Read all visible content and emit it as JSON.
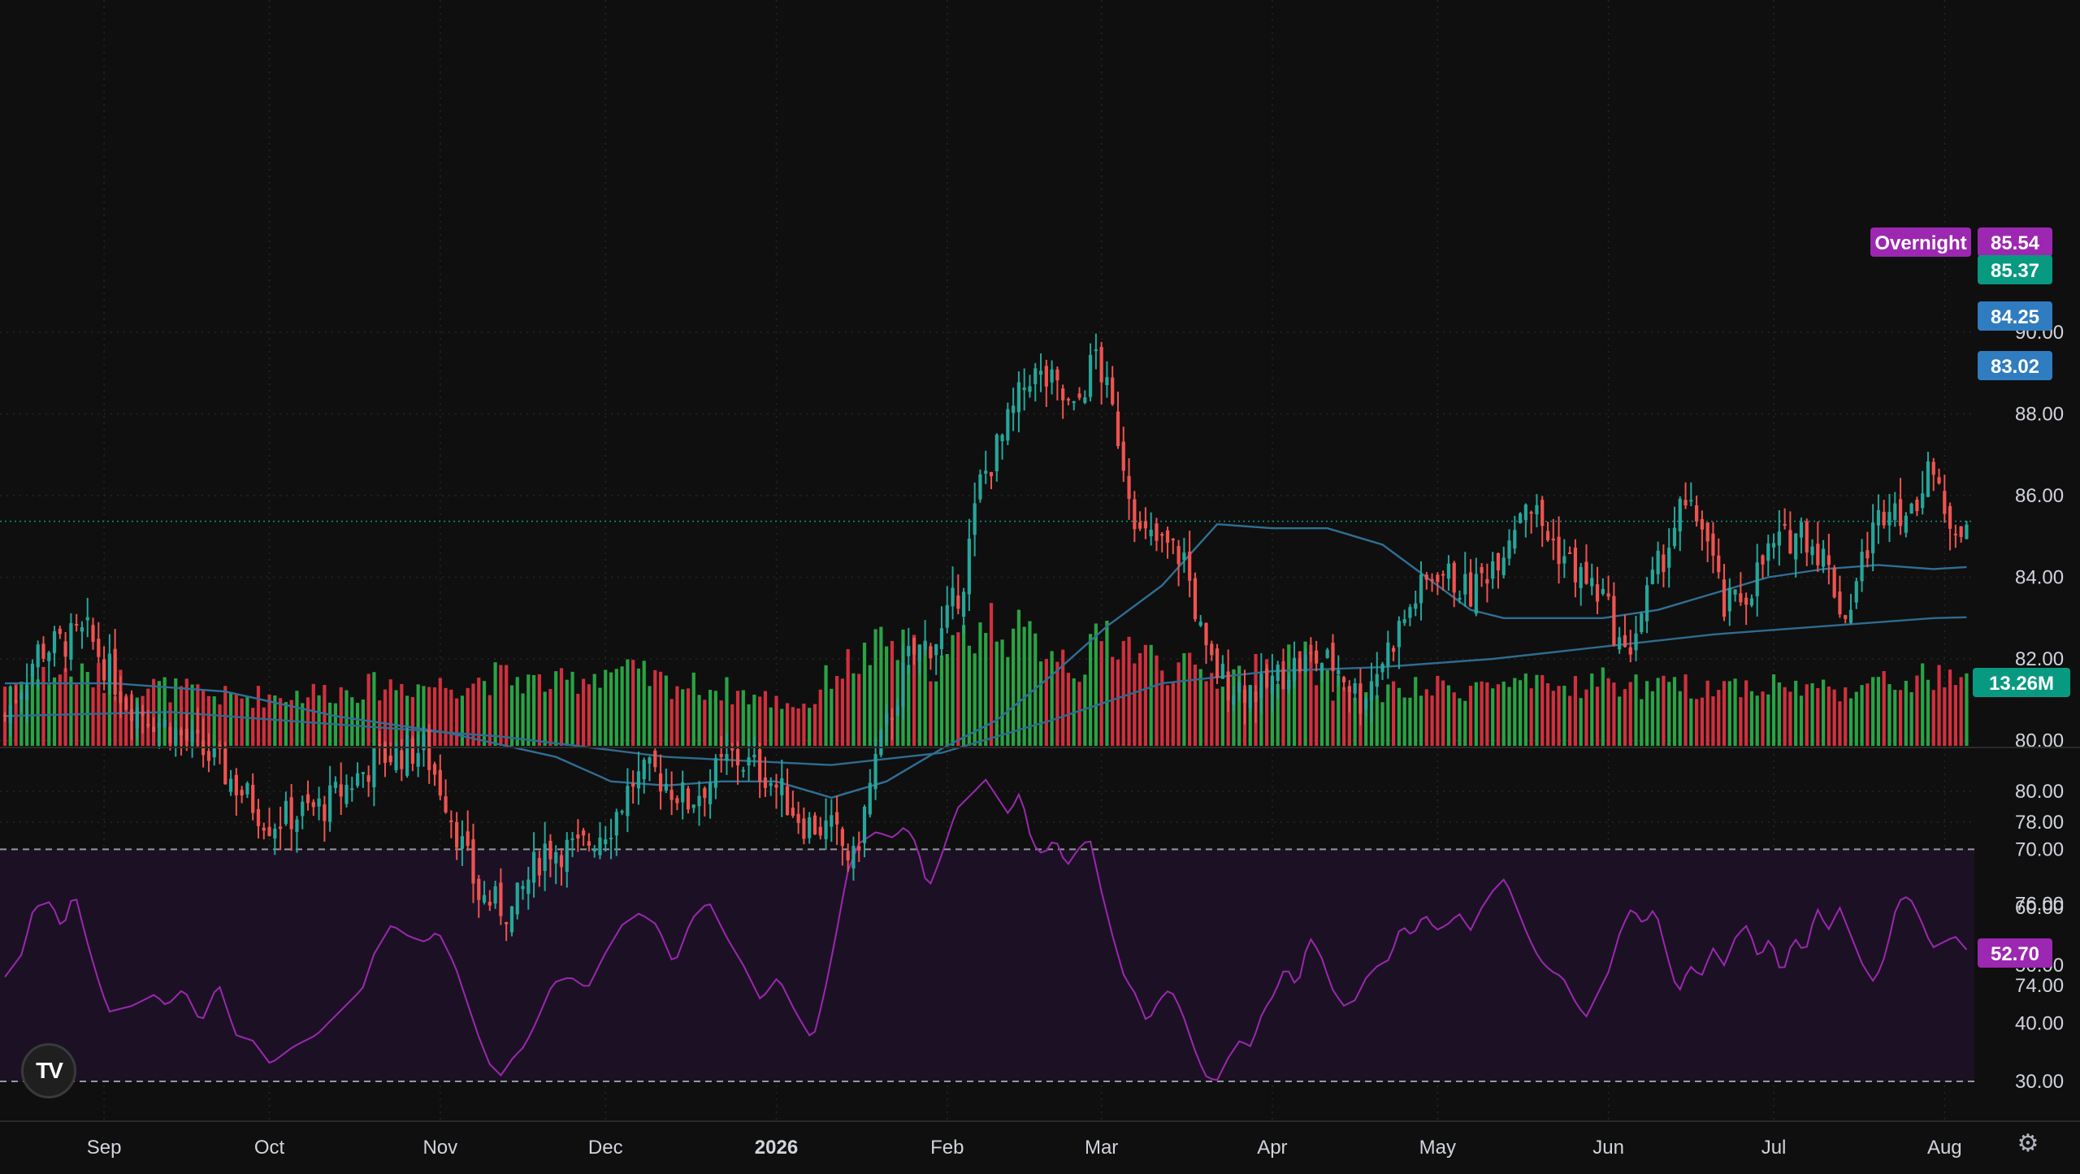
{
  "chart_data": {
    "type": "candlestick",
    "price_axis": {
      "ticks": [
        "90.00",
        "88.00",
        "86.00",
        "84.00",
        "82.00",
        "80.00",
        "78.00",
        "76.00",
        "74.00"
      ],
      "min": 74,
      "max": 90
    },
    "rsi_axis": {
      "ticks": [
        "80.00",
        "70.00",
        "60.00",
        "50.00",
        "40.00",
        "30.00"
      ],
      "overbought": 70,
      "oversold": 30
    },
    "x_labels": [
      {
        "label": "Sep",
        "day": 18
      },
      {
        "label": "Oct",
        "day": 48
      },
      {
        "label": "Nov",
        "day": 79
      },
      {
        "label": "Dec",
        "day": 109
      },
      {
        "label": "2026",
        "day": 140,
        "bold": true
      },
      {
        "label": "Feb",
        "day": 171
      },
      {
        "label": "Mar",
        "day": 199
      },
      {
        "label": "Apr",
        "day": 230
      },
      {
        "label": "May",
        "day": 260
      },
      {
        "label": "Jun",
        "day": 291
      },
      {
        "label": "Jul",
        "day": 321
      },
      {
        "label": "Aug",
        "day": 352
      }
    ],
    "price_anchors": [
      [
        0,
        80.6
      ],
      [
        6,
        82.2
      ],
      [
        15,
        82.6
      ],
      [
        22,
        81.0
      ],
      [
        30,
        80.3
      ],
      [
        38,
        79.5
      ],
      [
        48,
        78.0
      ],
      [
        58,
        78.4
      ],
      [
        68,
        79.6
      ],
      [
        76,
        79.8
      ],
      [
        80,
        78.6
      ],
      [
        86,
        76.2
      ],
      [
        92,
        75.8
      ],
      [
        98,
        77.4
      ],
      [
        104,
        77.3
      ],
      [
        110,
        78.0
      ],
      [
        114,
        79.0
      ],
      [
        118,
        79.2
      ],
      [
        124,
        78.5
      ],
      [
        132,
        79.6
      ],
      [
        138,
        79.2
      ],
      [
        145,
        78.0
      ],
      [
        150,
        77.8
      ],
      [
        154,
        77.0
      ],
      [
        158,
        79.5
      ],
      [
        164,
        82.0
      ],
      [
        170,
        82.6
      ],
      [
        174,
        84.0
      ],
      [
        177,
        86.3
      ],
      [
        181,
        87.4
      ],
      [
        186,
        89.0
      ],
      [
        190,
        88.7
      ],
      [
        194,
        88.0
      ],
      [
        198,
        89.5
      ],
      [
        202,
        87.5
      ],
      [
        206,
        85.0
      ],
      [
        210,
        84.8
      ],
      [
        214,
        84.5
      ],
      [
        218,
        82.0
      ],
      [
        222,
        81.4
      ],
      [
        228,
        81.2
      ],
      [
        233,
        81.8
      ],
      [
        238,
        82.0
      ],
      [
        242,
        81.8
      ],
      [
        246,
        81.0
      ],
      [
        250,
        82.0
      ],
      [
        256,
        83.5
      ],
      [
        260,
        84.2
      ],
      [
        266,
        83.6
      ],
      [
        272,
        84.8
      ],
      [
        276,
        86.0
      ],
      [
        280,
        85.0
      ],
      [
        286,
        84.0
      ],
      [
        290,
        83.5
      ],
      [
        294,
        82.0
      ],
      [
        298,
        83.5
      ],
      [
        304,
        85.6
      ],
      [
        308,
        85.4
      ],
      [
        312,
        83.2
      ],
      [
        316,
        83.6
      ],
      [
        320,
        84.6
      ],
      [
        326,
        85.2
      ],
      [
        330,
        84.5
      ],
      [
        334,
        83.0
      ],
      [
        338,
        84.8
      ],
      [
        342,
        86.0
      ],
      [
        346,
        85.4
      ],
      [
        349,
        87.0
      ],
      [
        352,
        85.4
      ],
      [
        356,
        85.37
      ]
    ],
    "last_day": 356,
    "sma_short_anchors": [
      [
        0,
        81.4
      ],
      [
        20,
        81.4
      ],
      [
        40,
        81.2
      ],
      [
        60,
        80.6
      ],
      [
        80,
        80.2
      ],
      [
        100,
        79.6
      ],
      [
        110,
        79.0
      ],
      [
        120,
        78.9
      ],
      [
        130,
        79.0
      ],
      [
        140,
        79.0
      ],
      [
        150,
        78.6
      ],
      [
        160,
        79.0
      ],
      [
        170,
        79.8
      ],
      [
        180,
        80.5
      ],
      [
        190,
        81.6
      ],
      [
        200,
        82.8
      ],
      [
        210,
        83.8
      ],
      [
        220,
        85.3
      ],
      [
        230,
        85.2
      ],
      [
        240,
        85.2
      ],
      [
        250,
        84.8
      ],
      [
        260,
        83.8
      ],
      [
        266,
        83.2
      ],
      [
        272,
        83.0
      ],
      [
        280,
        83.0
      ],
      [
        290,
        83.0
      ],
      [
        300,
        83.2
      ],
      [
        310,
        83.6
      ],
      [
        320,
        84.0
      ],
      [
        330,
        84.2
      ],
      [
        340,
        84.3
      ],
      [
        350,
        84.2
      ],
      [
        356,
        84.25
      ]
    ],
    "sma_long_anchors": [
      [
        0,
        80.6
      ],
      [
        30,
        80.7
      ],
      [
        60,
        80.4
      ],
      [
        90,
        80.1
      ],
      [
        120,
        79.6
      ],
      [
        150,
        79.4
      ],
      [
        170,
        79.7
      ],
      [
        190,
        80.5
      ],
      [
        210,
        81.4
      ],
      [
        230,
        81.7
      ],
      [
        250,
        81.8
      ],
      [
        270,
        82.0
      ],
      [
        290,
        82.3
      ],
      [
        310,
        82.6
      ],
      [
        330,
        82.8
      ],
      [
        350,
        83.0
      ],
      [
        356,
        83.02
      ]
    ],
    "volume_anchors": [
      [
        0,
        0.3
      ],
      [
        10,
        0.36
      ],
      [
        20,
        0.32
      ],
      [
        30,
        0.28
      ],
      [
        40,
        0.24
      ],
      [
        50,
        0.25
      ],
      [
        60,
        0.27
      ],
      [
        70,
        0.3
      ],
      [
        80,
        0.3
      ],
      [
        90,
        0.34
      ],
      [
        100,
        0.3
      ],
      [
        110,
        0.38
      ],
      [
        120,
        0.31
      ],
      [
        130,
        0.28
      ],
      [
        140,
        0.22
      ],
      [
        146,
        0.2
      ],
      [
        150,
        0.36
      ],
      [
        155,
        0.42
      ],
      [
        160,
        0.5
      ],
      [
        170,
        0.4
      ],
      [
        175,
        0.56
      ],
      [
        180,
        0.62
      ],
      [
        185,
        0.52
      ],
      [
        190,
        0.5
      ],
      [
        195,
        0.38
      ],
      [
        200,
        0.56
      ],
      [
        205,
        0.48
      ],
      [
        210,
        0.4
      ],
      [
        220,
        0.34
      ],
      [
        230,
        0.38
      ],
      [
        236,
        0.44
      ],
      [
        240,
        0.3
      ],
      [
        250,
        0.26
      ],
      [
        260,
        0.28
      ],
      [
        270,
        0.3
      ],
      [
        280,
        0.28
      ],
      [
        290,
        0.32
      ],
      [
        300,
        0.28
      ],
      [
        310,
        0.3
      ],
      [
        320,
        0.3
      ],
      [
        330,
        0.28
      ],
      [
        340,
        0.3
      ],
      [
        350,
        0.34
      ],
      [
        356,
        0.3
      ]
    ],
    "rsi_anchors": [
      [
        0,
        48
      ],
      [
        3,
        52
      ],
      [
        5,
        60
      ],
      [
        8,
        61
      ],
      [
        10,
        56
      ],
      [
        12,
        63
      ],
      [
        14,
        55
      ],
      [
        16,
        48
      ],
      [
        18,
        42
      ],
      [
        22,
        43
      ],
      [
        26,
        45
      ],
      [
        28,
        43
      ],
      [
        31,
        46
      ],
      [
        34,
        40
      ],
      [
        37,
        47
      ],
      [
        40,
        38
      ],
      [
        43,
        37
      ],
      [
        46,
        33
      ],
      [
        50,
        36
      ],
      [
        54,
        38
      ],
      [
        58,
        42
      ],
      [
        62,
        46
      ],
      [
        64,
        52
      ],
      [
        67,
        57
      ],
      [
        70,
        55
      ],
      [
        73,
        54
      ],
      [
        75,
        56
      ],
      [
        78,
        50
      ],
      [
        80,
        44
      ],
      [
        82,
        38
      ],
      [
        84,
        33
      ],
      [
        86,
        31
      ],
      [
        88,
        34
      ],
      [
        90,
        36
      ],
      [
        92,
        40
      ],
      [
        95,
        47
      ],
      [
        98,
        48
      ],
      [
        101,
        46
      ],
      [
        104,
        52
      ],
      [
        107,
        57
      ],
      [
        110,
        59
      ],
      [
        113,
        57
      ],
      [
        116,
        50
      ],
      [
        119,
        58
      ],
      [
        122,
        61
      ],
      [
        125,
        55
      ],
      [
        128,
        50
      ],
      [
        131,
        44
      ],
      [
        134,
        48
      ],
      [
        137,
        42
      ],
      [
        140,
        37
      ],
      [
        142,
        45
      ],
      [
        144,
        55
      ],
      [
        146,
        66
      ],
      [
        148,
        71
      ],
      [
        151,
        73
      ],
      [
        154,
        72
      ],
      [
        156,
        74
      ],
      [
        158,
        71
      ],
      [
        160,
        63
      ],
      [
        162,
        68
      ],
      [
        165,
        77
      ],
      [
        168,
        80
      ],
      [
        170,
        82
      ],
      [
        172,
        79
      ],
      [
        174,
        76
      ],
      [
        176,
        80
      ],
      [
        178,
        71
      ],
      [
        180,
        69
      ],
      [
        182,
        72
      ],
      [
        184,
        67
      ],
      [
        186,
        70
      ],
      [
        188,
        72
      ],
      [
        190,
        63
      ],
      [
        192,
        55
      ],
      [
        194,
        48
      ],
      [
        196,
        45
      ],
      [
        198,
        40
      ],
      [
        200,
        44
      ],
      [
        202,
        46
      ],
      [
        204,
        42
      ],
      [
        206,
        36
      ],
      [
        208,
        31
      ],
      [
        210,
        30
      ],
      [
        212,
        34
      ],
      [
        214,
        37
      ],
      [
        216,
        36
      ],
      [
        218,
        42
      ],
      [
        220,
        45
      ],
      [
        222,
        50
      ],
      [
        224,
        46
      ],
      [
        226,
        55
      ],
      [
        228,
        52
      ],
      [
        230,
        46
      ],
      [
        232,
        43
      ],
      [
        234,
        44
      ],
      [
        236,
        48
      ],
      [
        238,
        50
      ],
      [
        240,
        51
      ],
      [
        242,
        57
      ],
      [
        244,
        55
      ],
      [
        246,
        59
      ],
      [
        248,
        56
      ],
      [
        250,
        57
      ],
      [
        252,
        59
      ],
      [
        254,
        56
      ],
      [
        256,
        60
      ],
      [
        258,
        63
      ],
      [
        260,
        65
      ],
      [
        262,
        60
      ],
      [
        264,
        55
      ],
      [
        266,
        51
      ],
      [
        268,
        49
      ],
      [
        270,
        48
      ],
      [
        272,
        44
      ],
      [
        274,
        41
      ],
      [
        276,
        45
      ],
      [
        278,
        49
      ],
      [
        280,
        56
      ],
      [
        282,
        60
      ],
      [
        284,
        57
      ],
      [
        286,
        60
      ],
      [
        288,
        52
      ],
      [
        290,
        45
      ],
      [
        292,
        50
      ],
      [
        294,
        48
      ],
      [
        296,
        53
      ],
      [
        298,
        50
      ],
      [
        300,
        55
      ],
      [
        302,
        57
      ],
      [
        304,
        51
      ],
      [
        306,
        55
      ],
      [
        308,
        48
      ],
      [
        310,
        55
      ],
      [
        312,
        52
      ],
      [
        314,
        60
      ],
      [
        316,
        56
      ],
      [
        318,
        60
      ],
      [
        320,
        55
      ],
      [
        322,
        50
      ],
      [
        324,
        47
      ],
      [
        326,
        52
      ],
      [
        328,
        61
      ],
      [
        330,
        62
      ],
      [
        332,
        58
      ],
      [
        334,
        53
      ],
      [
        336,
        54
      ],
      [
        338,
        55
      ],
      [
        340,
        52.7
      ]
    ],
    "last_badges": {
      "overnight_label": "Overnight",
      "overnight_value": "85.54",
      "last_price": "85.37",
      "sma_short": "84.25",
      "sma_long": "83.02",
      "volume": "13.26M",
      "rsi": "52.70"
    },
    "colors": {
      "up": "#26a69a",
      "down": "#ef5350",
      "vol_up": "#2ebd4e",
      "vol_down": "#f23645",
      "sma_short": "#2f6f95",
      "sma_long": "#2f6b8f",
      "rsi": "#9c27b0",
      "rsi_band": "#1c1124",
      "overnight": "#9c27b0",
      "price_badge": "#089981",
      "sma_badge": "#2f7cc0",
      "volume_badge": "#089981"
    }
  }
}
